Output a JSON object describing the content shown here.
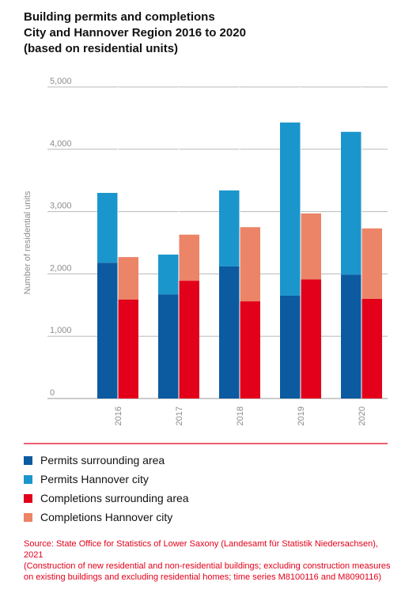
{
  "title_lines": [
    "Building permits and completions",
    "City and Hannover Region 2016 to 2020",
    "(based on residential units)"
  ],
  "colors": {
    "permits_surrounding": "#0c5aa0",
    "permits_city": "#1b96cc",
    "completions_surrounding": "#e2001a",
    "completions_city": "#ec8467",
    "axis": "#9a9a9a",
    "grid": "#b8b8b8",
    "divider": "#e2001a"
  },
  "legend": [
    {
      "label": "Permits surrounding area",
      "color": "#0c5aa0"
    },
    {
      "label": "Permits Hannover city",
      "color": "#1b96cc"
    },
    {
      "label": "Completions surrounding area",
      "color": "#e2001a"
    },
    {
      "label": "Completions Hannover city",
      "color": "#ec8467"
    }
  ],
  "source_lines": [
    "Source: State Office for Statistics of Lower Saxony (Landesamt für Statistik Niedersachsen), 2021",
    "(Construction of new residential and non-residential buildings; excluding construction measures",
    "on existing buildings and excluding residential homes; time series M8100116 and M8090116)"
  ],
  "chart_data": {
    "type": "bar",
    "stacked": true,
    "grouped": true,
    "categories": [
      "2016",
      "2017",
      "2018",
      "2019",
      "2020"
    ],
    "ylabel": "Number of residential units",
    "ylim": [
      0,
      5000
    ],
    "yticks": [
      0,
      1000,
      2000,
      3000,
      4000,
      5000
    ],
    "ytick_labels": [
      "0",
      "1,000",
      "2,000",
      "3,000",
      "4,000",
      "5,000"
    ],
    "grid": true,
    "legend_position": "bottom",
    "groups": [
      {
        "name": "Permits",
        "series": [
          {
            "name": "Permits surrounding area",
            "color": "#0c5aa0",
            "values": [
              2180,
              1670,
              2120,
              1650,
              1990
            ]
          },
          {
            "name": "Permits Hannover city",
            "color": "#1b96cc",
            "values": [
              1120,
              640,
              1220,
              2780,
              2290
            ]
          }
        ]
      },
      {
        "name": "Completions",
        "series": [
          {
            "name": "Completions surrounding area",
            "color": "#e2001a",
            "values": [
              1590,
              1890,
              1560,
              1910,
              1600
            ]
          },
          {
            "name": "Completions Hannover city",
            "color": "#ec8467",
            "values": [
              680,
              740,
              1190,
              1060,
              1130
            ]
          }
        ]
      }
    ]
  }
}
